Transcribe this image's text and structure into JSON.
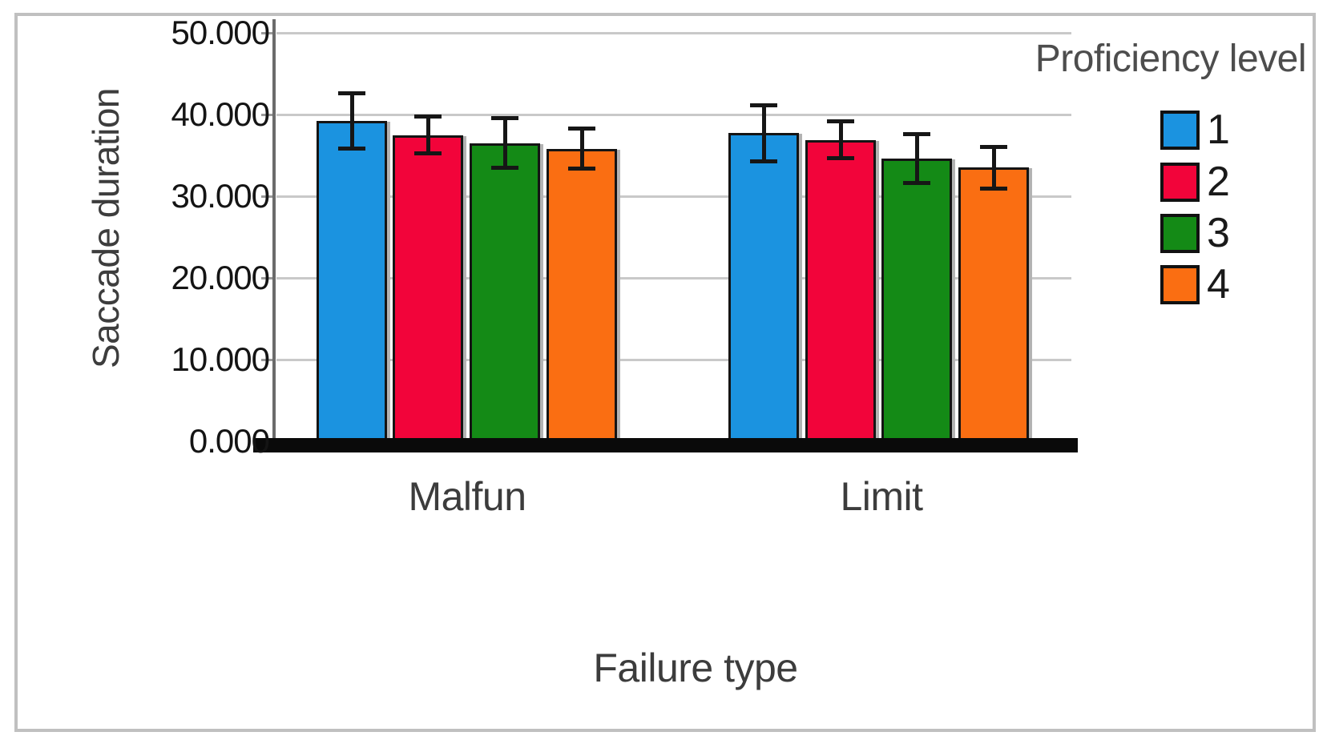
{
  "chart_data": {
    "type": "bar",
    "title": "",
    "ylabel": "Saccade duration",
    "xlabel": "Failure type",
    "legend_title": "Proficiency level",
    "legend_position": "right",
    "grid": true,
    "ylim": [
      0,
      50
    ],
    "y_ticks": [
      "50.000",
      "40.000",
      "30.000",
      "20.000",
      "10.000",
      "0.000"
    ],
    "categories": [
      "Malfun",
      "Limit"
    ],
    "series": [
      {
        "name": "1",
        "color": "#1b93e0",
        "values": [
          39.2,
          37.7
        ],
        "errors": [
          3.4,
          3.5
        ]
      },
      {
        "name": "2",
        "color": "#f2043a",
        "values": [
          37.5,
          36.9
        ],
        "errors": [
          2.3,
          2.3
        ]
      },
      {
        "name": "3",
        "color": "#148a16",
        "values": [
          36.5,
          34.6
        ],
        "errors": [
          3.1,
          3.0
        ]
      },
      {
        "name": "4",
        "color": "#fa6e12",
        "values": [
          35.8,
          33.5
        ],
        "errors": [
          2.5,
          2.6
        ]
      }
    ]
  }
}
